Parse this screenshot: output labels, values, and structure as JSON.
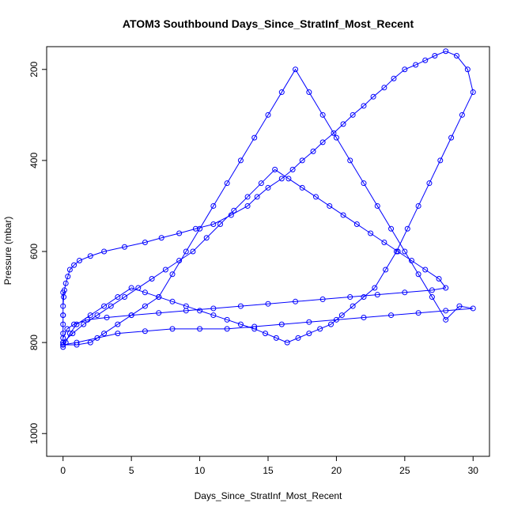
{
  "chart_data": {
    "type": "scatter",
    "title": "ATOM3 Southbound Days_Since_StratInf_Most_Recent",
    "xlabel": "Days_Since_StratInf_Most_Recent",
    "ylabel": "Pressure (mbar)",
    "xlim": [
      -1.2,
      31.2
    ],
    "ylim": [
      1050,
      150
    ],
    "y_reversed": true,
    "x_ticks": [
      0,
      5,
      10,
      15,
      20,
      25,
      30
    ],
    "y_ticks": [
      200,
      400,
      600,
      800,
      1000
    ],
    "grid": false,
    "legend": "none",
    "marker": "open-circle",
    "connected": true,
    "series": [
      {
        "color": "#0000ff",
        "x": [
          0.0,
          0.0,
          0.0,
          0.0,
          0.0,
          0.0,
          0.05,
          0.1,
          0.2,
          0.35,
          0.5,
          0.8,
          1.2,
          2.0,
          3.0,
          4.5,
          6.0,
          7.2,
          8.5,
          9.7,
          11.0,
          12.3,
          13.5,
          14.2,
          15.0,
          16.0,
          16.8,
          17.5,
          18.3,
          19.0,
          19.8,
          20.5,
          21.2,
          22.0,
          22.7,
          23.5,
          24.2,
          25.0,
          25.8,
          26.5,
          27.2,
          28.0,
          28.8,
          29.6,
          30.0,
          29.2,
          28.4,
          27.6,
          26.8,
          26.0,
          25.2,
          24.4,
          23.6,
          22.8,
          22.0,
          21.2,
          20.4,
          19.6,
          18.8,
          18.0,
          17.2,
          16.4,
          15.6,
          14.8,
          14.0,
          13.0,
          12.0,
          11.0,
          10.0,
          9.0,
          8.0,
          7.0,
          6.0,
          5.0,
          4.0,
          3.0,
          2.0,
          1.0,
          0.5,
          0.2,
          0.0,
          0.0,
          0.3,
          0.8,
          1.8,
          3.2,
          5.0,
          7.0,
          9.0,
          11.0,
          13.0,
          15.0,
          17.0,
          19.0,
          21.0,
          23.0,
          25.0,
          27.0,
          28.0,
          27.5,
          26.5,
          25.5,
          24.5,
          23.5,
          22.5,
          21.5,
          20.5,
          19.5,
          18.5,
          17.5,
          16.5,
          15.5,
          14.5,
          13.5,
          12.5,
          11.5,
          10.5,
          9.5,
          8.5,
          7.5,
          6.5,
          5.5,
          4.5,
          3.5,
          2.5,
          1.5,
          0.7,
          0.0,
          0.0,
          1.0,
          2.5,
          4.0,
          6.0,
          8.0,
          10.0,
          12.0,
          14.0,
          16.0,
          18.0,
          20.0,
          22.0,
          24.0,
          26.0,
          28.0,
          30.0,
          29.0,
          28.0,
          27.0,
          26.0,
          25.0,
          24.0,
          23.0,
          22.0,
          21.0,
          20.0,
          19.0,
          18.0,
          17.0,
          16.0,
          15.0,
          14.0,
          13.0,
          12.0,
          11.0,
          10.0,
          9.0,
          8.0,
          7.0,
          6.0,
          5.0,
          4.0,
          3.0,
          2.0,
          1.0,
          0.0,
          0.0,
          0.0
        ],
        "y": [
          810,
          800,
          780,
          760,
          740,
          720,
          700,
          685,
          670,
          655,
          640,
          630,
          620,
          610,
          600,
          590,
          580,
          570,
          560,
          550,
          540,
          520,
          500,
          480,
          460,
          440,
          420,
          400,
          380,
          360,
          340,
          320,
          300,
          280,
          260,
          240,
          220,
          200,
          190,
          180,
          170,
          160,
          170,
          200,
          250,
          300,
          350,
          400,
          450,
          500,
          550,
          600,
          640,
          680,
          700,
          720,
          740,
          760,
          770,
          780,
          790,
          800,
          790,
          780,
          770,
          760,
          750,
          740,
          730,
          720,
          710,
          700,
          690,
          680,
          700,
          720,
          740,
          760,
          780,
          800,
          805,
          790,
          770,
          760,
          750,
          745,
          740,
          735,
          730,
          725,
          720,
          715,
          710,
          705,
          700,
          695,
          690,
          685,
          680,
          660,
          640,
          620,
          600,
          580,
          560,
          540,
          520,
          500,
          480,
          460,
          440,
          420,
          450,
          480,
          510,
          540,
          570,
          600,
          620,
          640,
          660,
          680,
          700,
          720,
          740,
          760,
          780,
          800,
          805,
          800,
          790,
          780,
          775,
          770,
          770,
          770,
          765,
          760,
          755,
          750,
          745,
          740,
          735,
          730,
          725,
          720,
          750,
          700,
          650,
          600,
          550,
          500,
          450,
          400,
          350,
          300,
          250,
          200,
          250,
          300,
          350,
          400,
          450,
          500,
          550,
          600,
          650,
          700,
          720,
          740,
          760,
          780,
          800,
          805,
          805,
          740,
          690
        ]
      }
    ],
    "n_points_depicted_approx": 2500
  }
}
